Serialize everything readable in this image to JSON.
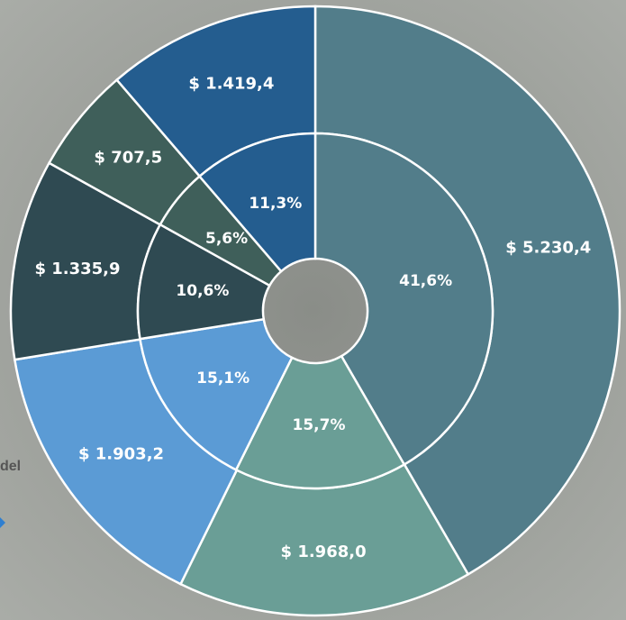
{
  "chart_data": {
    "type": "donut",
    "annotation": "del",
    "series": [
      {
        "values": [
          5230.4,
          1968.0,
          1903.2,
          1335.9,
          707.5,
          1419.4
        ],
        "value_labels": [
          "$ 5.230,4",
          "$ 1.968,0",
          "$ 1.903,2",
          "$ 1.335,9",
          "$ 707,5",
          "$ 1.419,4"
        ]
      },
      {
        "values": [
          41.6,
          15.7,
          15.1,
          10.6,
          5.6,
          11.3
        ],
        "value_labels": [
          "41,6%",
          "15,7%",
          "15,1%",
          "10,6%",
          "5,6%",
          "11,3%"
        ]
      }
    ],
    "colors": [
      "#527d8a",
      "#6a9e96",
      "#5b9bd5",
      "#2f4a52",
      "#3f5f5a",
      "#245d8f"
    ]
  }
}
